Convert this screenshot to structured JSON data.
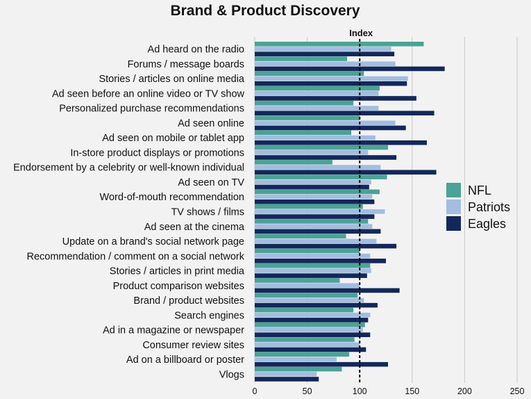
{
  "chart_data": {
    "type": "bar",
    "orientation": "horizontal",
    "title": "Brand & Product Discovery",
    "reference_line": {
      "label": "Index",
      "value": 100,
      "style": "dashed"
    },
    "xlim": [
      0,
      250
    ],
    "xticks": [
      0,
      50,
      100,
      150,
      200,
      250
    ],
    "grid": true,
    "legend_position": "right",
    "categories": [
      "Ad heard on the radio",
      "Forums / message boards",
      "Stories / articles on online media",
      "Ad seen before an online video or TV show",
      "Personalized purchase recommendations",
      "Ad seen online",
      "Ad seen on mobile or tablet app",
      "In-store product displays or promotions",
      "Endorsement by a celebrity or well-known individual",
      "Ad seen on TV",
      "Word-of-mouth recommendation",
      "TV shows / films",
      "Ad seen at the cinema",
      "Update on a brand's social network page",
      "Recommendation / comment on a social network",
      "Stories / articles in print media",
      "Product comparison websites",
      "Brand / product websites",
      "Search engines",
      "Ad in a magazine or newspaper",
      "Consumer review sites",
      "Ad on a billboard or poster",
      "Vlogs"
    ],
    "series": [
      {
        "name": "NFL",
        "color": "#4aa396",
        "values": [
          161,
          88,
          104,
          119,
          94,
          100,
          92,
          127,
          74,
          126,
          119,
          103,
          108,
          87,
          100,
          110,
          81,
          98,
          94,
          105,
          95,
          90,
          83
        ]
      },
      {
        "name": "Patriots",
        "color": "#a3bde0",
        "values": [
          130,
          134,
          146,
          118,
          118,
          134,
          115,
          108,
          120,
          111,
          112,
          124,
          112,
          116,
          110,
          111,
          100,
          104,
          110,
          103,
          100,
          78,
          59
        ]
      },
      {
        "name": "Eagles",
        "color": "#13285a",
        "values": [
          133,
          181,
          145,
          154,
          171,
          144,
          164,
          135,
          173,
          109,
          114,
          114,
          120,
          135,
          125,
          107,
          138,
          117,
          108,
          110,
          106,
          127,
          61
        ]
      }
    ]
  }
}
